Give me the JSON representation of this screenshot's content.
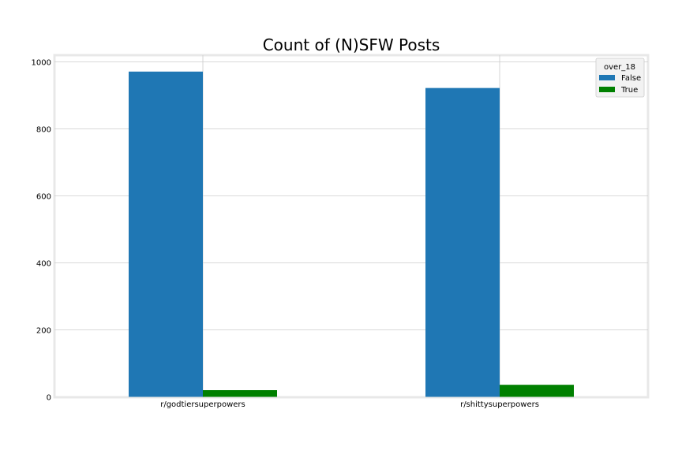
{
  "chart_data": {
    "type": "bar",
    "title": "Count of (N)SFW Posts",
    "xlabel": "",
    "ylabel": "",
    "categories": [
      "r/godtiersuperpowers",
      "r/shittysuperpowers"
    ],
    "series": [
      {
        "name": "False",
        "values": [
          971,
          922
        ],
        "color": "#1f77b4"
      },
      {
        "name": "True",
        "values": [
          20,
          36
        ],
        "color": "#008000"
      }
    ],
    "ylim": [
      0,
      1020
    ],
    "yticks": [
      0,
      200,
      400,
      600,
      800,
      1000
    ],
    "ytick_labels": [
      "0",
      "200",
      "400",
      "600",
      "800",
      "1000"
    ],
    "grid": true,
    "legend": {
      "title": "over_18",
      "placement": "top-right"
    }
  }
}
